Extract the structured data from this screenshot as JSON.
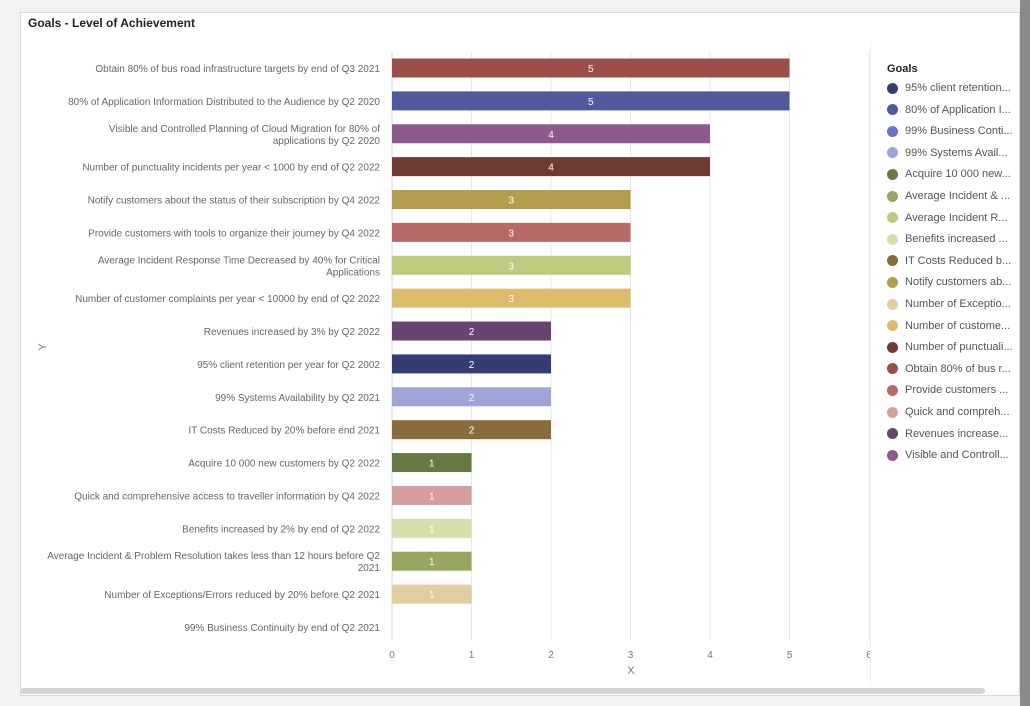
{
  "title": "Goals - Level of Achievement",
  "chart_data": {
    "type": "bar",
    "orientation": "horizontal",
    "xlabel": "X",
    "ylabel": "Y",
    "xlim": [
      0,
      6
    ],
    "xticks": [
      "0",
      "1",
      "2",
      "3",
      "4",
      "5",
      "6"
    ],
    "grid": true,
    "legend_title": "Goals",
    "legend_position": "right",
    "bars": [
      {
        "label": "Obtain 80% of bus road infrastructure targets by end of Q3 2021",
        "value": 5,
        "color": "#9b4f48"
      },
      {
        "label": "80% of Application Information Distributed to the Audience by Q2 2020",
        "value": 5,
        "color": "#4f5a9e"
      },
      {
        "label": "Visible and Controlled Planning of Cloud Migration for 80% of applications by Q2 2020",
        "value": 4,
        "color": "#8e5a8c"
      },
      {
        "label": "Number of punctuality incidents per year < 1000 by end of Q2 2022",
        "value": 4,
        "color": "#6e3a32"
      },
      {
        "label": "Notify customers about the status of their subscription by Q4 2022",
        "value": 3,
        "color": "#b39c4e"
      },
      {
        "label": "Provide customers with tools to organize their journey by Q4 2022",
        "value": 3,
        "color": "#b86a68"
      },
      {
        "label": "Average Incident Response Time Decreased by 40% for Critical Applications",
        "value": 3,
        "color": "#bccb7e"
      },
      {
        "label": "Number of customer complaints per year < 10000 by end of Q2 2022",
        "value": 3,
        "color": "#dcbb6c"
      },
      {
        "label": "Revenues increased by 3% by Q2 2022",
        "value": 2,
        "color": "#6a4470"
      },
      {
        "label": "95% client retention per year for Q2 2002",
        "value": 2,
        "color": "#343c74"
      },
      {
        "label": "99% Systems Availability by Q2 2021",
        "value": 2,
        "color": "#9ea3d8"
      },
      {
        "label": "IT Costs Reduced by 20% before end 2021",
        "value": 2,
        "color": "#8a6c3c"
      },
      {
        "label": "Acquire 10 000 new customers by Q2 2022",
        "value": 1,
        "color": "#677a43"
      },
      {
        "label": "Quick and comprehensive access to traveller information by Q4 2022",
        "value": 1,
        "color": "#d49e9c"
      },
      {
        "label": "Benefits increased by 2% by end of Q2 2022",
        "value": 1,
        "color": "#d6dfaa"
      },
      {
        "label": "Average Incident & Problem Resolution takes less than 12 hours before Q2 2021",
        "value": 1,
        "color": "#97a65e"
      },
      {
        "label": "Number of Exceptions/Errors reduced by 20% before Q2 2021",
        "value": 1,
        "color": "#e1cd9e"
      },
      {
        "label": "99% Business Continuity by end of Q2 2021",
        "value": 0,
        "color": "#6b72c8"
      }
    ],
    "legend": [
      {
        "label": "95% client retention...",
        "color": "#343c74"
      },
      {
        "label": "80% of Application I...",
        "color": "#4f5a9e"
      },
      {
        "label": "99% Business Conti...",
        "color": "#6b72c8"
      },
      {
        "label": "99% Systems Avail...",
        "color": "#9ea3d8"
      },
      {
        "label": "Acquire 10 000 new...",
        "color": "#677a43"
      },
      {
        "label": "Average Incident & ...",
        "color": "#97a65e"
      },
      {
        "label": "Average Incident R...",
        "color": "#bccb7e"
      },
      {
        "label": "Benefits increased ...",
        "color": "#d6dfaa"
      },
      {
        "label": "IT Costs Reduced b...",
        "color": "#8a6c3c"
      },
      {
        "label": "Notify customers ab...",
        "color": "#b39c4e"
      },
      {
        "label": "Number of Exceptio...",
        "color": "#e1cd9e"
      },
      {
        "label": "Number of custome...",
        "color": "#dcbb6c"
      },
      {
        "label": "Number of punctuali...",
        "color": "#6e3a32"
      },
      {
        "label": "Obtain 80% of bus r...",
        "color": "#9b4f48"
      },
      {
        "label": "Provide customers ...",
        "color": "#b86a68"
      },
      {
        "label": "Quick and compreh...",
        "color": "#d49e9c"
      },
      {
        "label": "Revenues increase...",
        "color": "#6a4470"
      },
      {
        "label": "Visible and Controll...",
        "color": "#8e5a8c"
      }
    ]
  }
}
